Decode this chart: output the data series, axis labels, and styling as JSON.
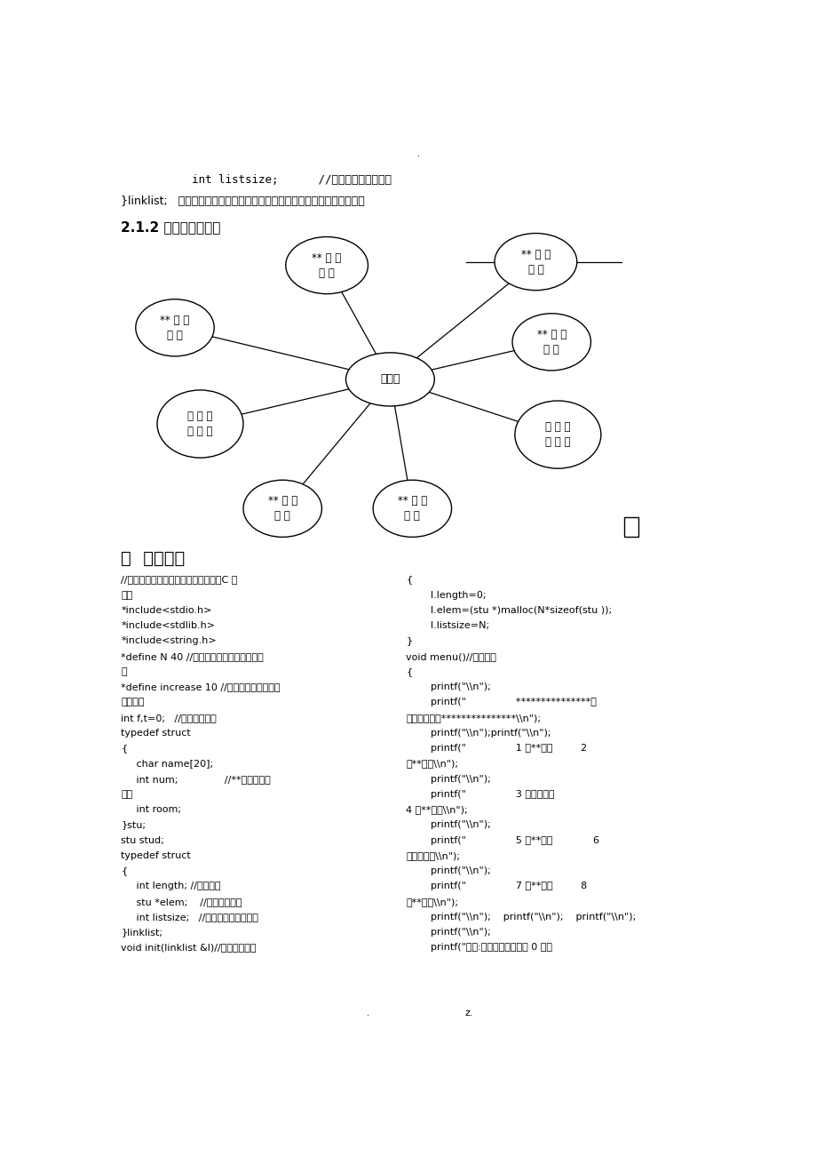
{
  "background_color": "#ffffff",
  "page_dot_top": ".",
  "line1": "    int listsize;      //当前分配的存储容量",
  "line2": "}linklist;   在此说明每个局部的算法设计说明（可以是描述算法的流程图）",
  "section_title": "2.1.2 程序构造图为：",
  "center_label": "主函数",
  "node_top_left_label": "** 排 序\n模 块",
  "node_top_right_label": "** 删 除\n模 块",
  "node_mid_left_label": "** 排 序\n模 块",
  "node_mid_right_label": "** 插 入\n模 块",
  "node_lower_left_label": "房 间 排\n序 模 块",
  "node_lower_right_label": "房 号 查\n找 模 快",
  "node_bot_left_label": "** 查 找\n模 块",
  "node_bot_right_label": "** 查 找\n模 块",
  "section3_title": "三  详细设计",
  "left_col1": "//采用顺序线性表解决宿舍管理问题（C 语",
  "left_col2": "言）",
  "left_col3": "*include<stdio.h>",
  "left_col4": "*include<stdlib.h>",
  "left_col5": "*include<string.h>",
  "left_col6": "*define N 40 //线性表存储空间的初始分配",
  "left_col7": "量",
  "left_col8": "*define increase 10 //线性表存储空间的分",
  "left_col9": "配量增量",
  "left_col10": "int f,t=0;   //定义全局变量",
  "left_col11": "typedef struct",
  "left_col12": "{",
  "left_col13": "     char name[20];",
  "left_col14": "     int num;               //**和房号都为",
  "left_col15": "整型",
  "left_col16": "     int room;",
  "left_col17": "}stu;",
  "left_col18": "stu stud;",
  "left_col19": "typedef struct",
  "left_col20": "{",
  "left_col21": "     int length; //当前长度",
  "left_col22": "     stu *elem;    //存储空间基址",
  "left_col23": "     int listsize;   //当前分配的存储容量",
  "left_col24": "}linklist;",
  "left_col25": "void init(linklist &l)//线性表初始化",
  "right_col1": "{",
  "right_col2": "        l.length=0;",
  "right_col3": "        l.elem=(stu *)malloc(N*sizeof(stu ));",
  "right_col4": "        l.listsize=N;",
  "right_col5": "}",
  "right_col6": "void menu()//操作菜单",
  "right_col7": "{",
  "right_col8": "        printf(\"\\\\n\");",
  "right_col9": "        printf(\"                ***************请",
  "right_col10": "按键选择操作***************\\\\n\");",
  "right_col11": "        printf(\"\\\\n\");printf(\"\\\\n\");",
  "right_col12": "        printf(\"                1 按**排序         2",
  "right_col13": "按**排序\\\\n\");",
  "right_col14": "        printf(\"\\\\n\");",
  "right_col15": "        printf(\"                3 按房号排序",
  "right_col16": "4 按**查找\\\\n\");",
  "right_col17": "        printf(\"\\\\n\");",
  "right_col18": "        printf(\"                5 按**查找             6",
  "right_col19": "按房号查找\\\\n\");",
  "right_col20": "        printf(\"\\\\n\");",
  "right_col21": "        printf(\"                7 按**插入         8",
  "right_col22": "按**删除\\\\n\");",
  "right_col23": "        printf(\"\\\\n\");    printf(\"\\\\n\");    printf(\"\\\\n\");",
  "right_col24": "        printf(\"\\\\n\");",
  "right_col25": "        printf(\"提示:当输入的数字键为 0 时，",
  "page_dot_bottom": ".",
  "page_num": "z."
}
